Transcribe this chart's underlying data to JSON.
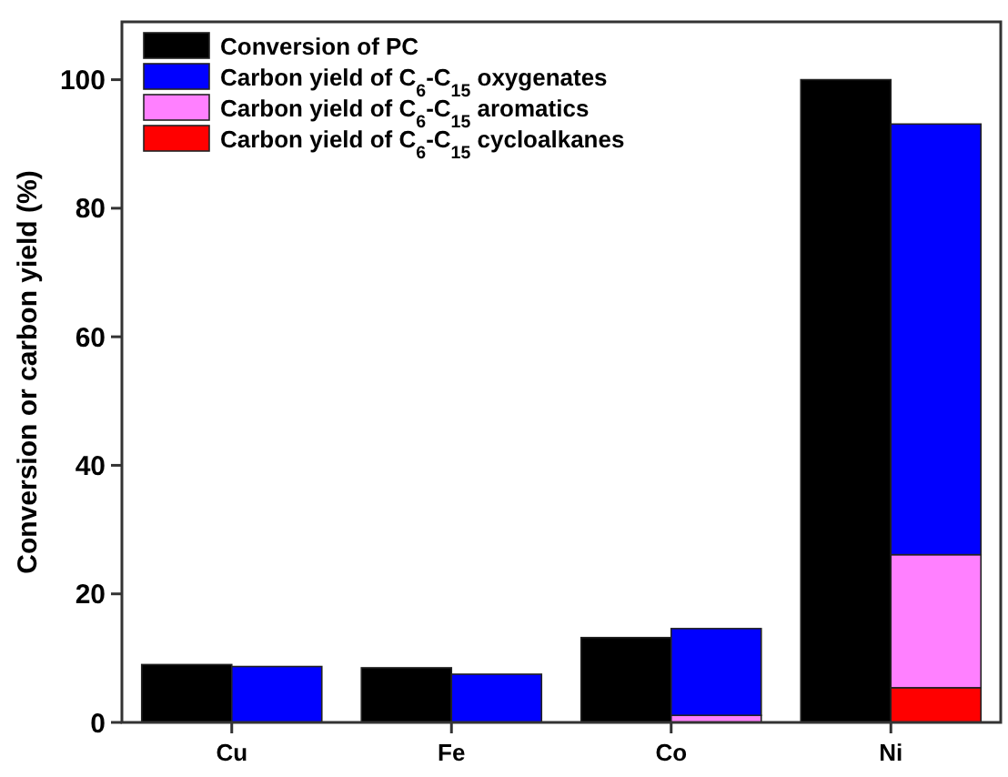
{
  "chart_data": {
    "type": "bar",
    "ylabel": "Conversion or carbon yield (%)",
    "categories": [
      "Cu",
      "Fe",
      "Co",
      "Ni"
    ],
    "ylim": [
      0,
      109
    ],
    "yticks": [
      0,
      20,
      40,
      60,
      80,
      100
    ],
    "grid": false,
    "legend": "top left",
    "series": [
      {
        "name": "Conversion of PC",
        "color": "#000000",
        "values": [
          9.0,
          8.5,
          13.2,
          100
        ]
      },
      {
        "name": "Carbon yield of C$_{6}$-C$_{15}$ cycloalkanes",
        "color": "#ff0000",
        "values": [
          null,
          null,
          null,
          5.4
        ],
        "base": [
          null,
          null,
          null,
          0
        ]
      },
      {
        "name": "Carbon yield of C$_{6}$-C$_{15}$ aromatics",
        "color": "#ff80ff",
        "values": [
          null,
          null,
          1.1,
          20.7
        ],
        "base": [
          null,
          null,
          0,
          5.4
        ]
      },
      {
        "name": "Carbon yield of C$_{6}$-C$_{15}$ oxygenates",
        "color": "#0000ff",
        "values": [
          8.7,
          7.5,
          13.5,
          67
        ],
        "base": [
          0,
          0,
          1.1,
          26.1
        ]
      }
    ]
  }
}
